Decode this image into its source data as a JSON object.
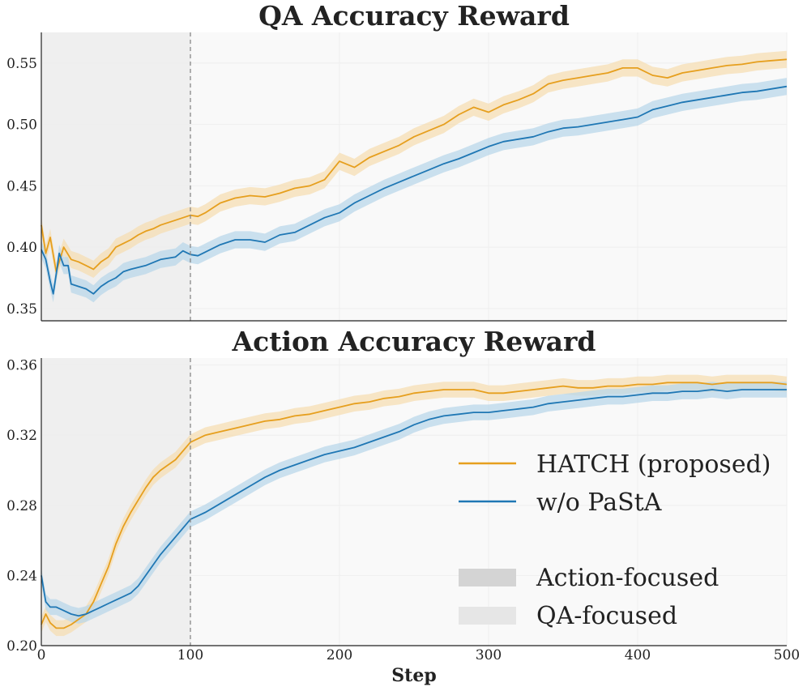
{
  "chart_data": [
    {
      "type": "line",
      "title": "QA Accuracy Reward",
      "xlabel": "",
      "ylabel": "",
      "xlim": [
        0,
        500
      ],
      "ylim": [
        0.34,
        0.575
      ],
      "yticks": [
        "0.35",
        "0.40",
        "0.45",
        "0.50",
        "0.55"
      ],
      "ytick_values": [
        0.35,
        0.4,
        0.45,
        0.5,
        0.55
      ],
      "phase_boundary_step": 100,
      "band_halfwidth": 0.007,
      "series": [
        {
          "name": "HATCH (proposed)",
          "color": "#e69f1e",
          "band_color": "#f5deb3",
          "x": [
            0,
            3,
            6,
            10,
            15,
            20,
            25,
            30,
            35,
            40,
            45,
            50,
            55,
            60,
            65,
            70,
            75,
            80,
            90,
            100,
            105,
            110,
            120,
            130,
            140,
            150,
            160,
            170,
            180,
            190,
            200,
            210,
            220,
            230,
            240,
            250,
            260,
            270,
            280,
            290,
            300,
            310,
            320,
            330,
            340,
            350,
            360,
            370,
            380,
            390,
            400,
            410,
            420,
            430,
            440,
            450,
            460,
            470,
            480,
            490,
            500
          ],
          "values": [
            0.418,
            0.395,
            0.408,
            0.38,
            0.4,
            0.39,
            0.388,
            0.385,
            0.382,
            0.388,
            0.392,
            0.4,
            0.403,
            0.406,
            0.41,
            0.413,
            0.415,
            0.418,
            0.422,
            0.426,
            0.425,
            0.428,
            0.436,
            0.44,
            0.442,
            0.441,
            0.444,
            0.448,
            0.45,
            0.455,
            0.47,
            0.465,
            0.473,
            0.478,
            0.483,
            0.49,
            0.495,
            0.5,
            0.508,
            0.514,
            0.51,
            0.516,
            0.52,
            0.525,
            0.533,
            0.536,
            0.538,
            0.54,
            0.542,
            0.546,
            0.546,
            0.54,
            0.538,
            0.542,
            0.544,
            0.546,
            0.548,
            0.549,
            0.551,
            0.552,
            0.553
          ]
        },
        {
          "name": "w/o PaStA",
          "color": "#1f77b4",
          "band_color": "#b9d7ea",
          "x": [
            0,
            3,
            6,
            8,
            10,
            12,
            15,
            18,
            20,
            25,
            30,
            35,
            40,
            45,
            50,
            55,
            60,
            70,
            80,
            90,
            95,
            100,
            105,
            110,
            120,
            130,
            140,
            150,
            160,
            170,
            180,
            190,
            200,
            210,
            220,
            230,
            240,
            250,
            260,
            270,
            280,
            290,
            300,
            310,
            320,
            330,
            340,
            350,
            360,
            370,
            380,
            390,
            400,
            410,
            420,
            430,
            440,
            450,
            460,
            470,
            480,
            490,
            500
          ],
          "values": [
            0.398,
            0.39,
            0.372,
            0.362,
            0.378,
            0.395,
            0.385,
            0.385,
            0.37,
            0.368,
            0.366,
            0.362,
            0.368,
            0.372,
            0.375,
            0.38,
            0.382,
            0.385,
            0.39,
            0.392,
            0.397,
            0.394,
            0.393,
            0.396,
            0.402,
            0.406,
            0.406,
            0.404,
            0.41,
            0.412,
            0.418,
            0.424,
            0.428,
            0.436,
            0.442,
            0.448,
            0.453,
            0.458,
            0.463,
            0.468,
            0.472,
            0.477,
            0.482,
            0.486,
            0.488,
            0.49,
            0.494,
            0.497,
            0.498,
            0.5,
            0.502,
            0.504,
            0.506,
            0.512,
            0.515,
            0.518,
            0.52,
            0.522,
            0.524,
            0.526,
            0.527,
            0.529,
            0.531
          ]
        }
      ]
    },
    {
      "type": "line",
      "title": "Action Accuracy Reward",
      "xlabel": "Step",
      "ylabel": "",
      "xlim": [
        0,
        500
      ],
      "ylim": [
        0.2,
        0.364
      ],
      "yticks": [
        "0.20",
        "0.24",
        "0.28",
        "0.32",
        "0.36"
      ],
      "ytick_values": [
        0.2,
        0.24,
        0.28,
        0.32,
        0.36
      ],
      "xticks": [
        "0",
        "100",
        "200",
        "300",
        "400",
        "500"
      ],
      "xtick_values": [
        0,
        100,
        200,
        300,
        400,
        500
      ],
      "phase_boundary_step": 100,
      "band_halfwidth": 0.0045,
      "series": [
        {
          "name": "HATCH (proposed)",
          "color": "#e69f1e",
          "band_color": "#f5deb3",
          "x": [
            0,
            3,
            6,
            10,
            15,
            20,
            25,
            30,
            35,
            40,
            45,
            50,
            55,
            60,
            65,
            70,
            75,
            80,
            90,
            100,
            110,
            120,
            130,
            140,
            150,
            160,
            170,
            180,
            190,
            200,
            210,
            220,
            230,
            240,
            250,
            260,
            270,
            280,
            290,
            300,
            310,
            320,
            330,
            340,
            350,
            360,
            370,
            380,
            390,
            400,
            410,
            420,
            430,
            440,
            450,
            460,
            470,
            480,
            490,
            500
          ],
          "values": [
            0.212,
            0.218,
            0.213,
            0.21,
            0.21,
            0.212,
            0.215,
            0.218,
            0.225,
            0.235,
            0.245,
            0.258,
            0.268,
            0.276,
            0.283,
            0.29,
            0.296,
            0.3,
            0.306,
            0.316,
            0.32,
            0.322,
            0.324,
            0.326,
            0.328,
            0.329,
            0.331,
            0.332,
            0.334,
            0.336,
            0.338,
            0.339,
            0.341,
            0.342,
            0.344,
            0.345,
            0.346,
            0.346,
            0.346,
            0.344,
            0.344,
            0.345,
            0.346,
            0.347,
            0.348,
            0.347,
            0.347,
            0.348,
            0.348,
            0.349,
            0.349,
            0.35,
            0.35,
            0.35,
            0.349,
            0.35,
            0.35,
            0.35,
            0.35,
            0.349
          ]
        },
        {
          "name": "w/o PaStA",
          "color": "#1f77b4",
          "band_color": "#b9d7ea",
          "x": [
            0,
            3,
            6,
            10,
            15,
            20,
            25,
            30,
            35,
            40,
            45,
            50,
            55,
            60,
            65,
            70,
            75,
            80,
            90,
            100,
            110,
            120,
            130,
            140,
            150,
            160,
            170,
            180,
            190,
            200,
            210,
            220,
            230,
            240,
            250,
            260,
            270,
            280,
            290,
            300,
            310,
            320,
            330,
            340,
            350,
            360,
            370,
            380,
            390,
            400,
            410,
            420,
            430,
            440,
            450,
            460,
            470,
            480,
            490,
            500
          ],
          "values": [
            0.24,
            0.225,
            0.222,
            0.222,
            0.22,
            0.218,
            0.217,
            0.218,
            0.22,
            0.222,
            0.224,
            0.226,
            0.228,
            0.23,
            0.234,
            0.24,
            0.246,
            0.252,
            0.262,
            0.272,
            0.276,
            0.281,
            0.286,
            0.291,
            0.296,
            0.3,
            0.303,
            0.306,
            0.309,
            0.311,
            0.313,
            0.316,
            0.319,
            0.322,
            0.326,
            0.329,
            0.331,
            0.332,
            0.333,
            0.333,
            0.334,
            0.335,
            0.336,
            0.338,
            0.339,
            0.34,
            0.341,
            0.342,
            0.342,
            0.343,
            0.344,
            0.344,
            0.345,
            0.345,
            0.346,
            0.345,
            0.346,
            0.346,
            0.346,
            0.346
          ]
        }
      ]
    }
  ],
  "legend": {
    "placement": "lower-right of bottom panel",
    "entries": [
      {
        "label": "HATCH (proposed)",
        "kind": "line",
        "color": "#e69f1e"
      },
      {
        "label": "w/o PaStA",
        "kind": "line",
        "color": "#1f77b4"
      },
      {
        "label": "Action-focused",
        "kind": "patch",
        "color": "#d4d4d4"
      },
      {
        "label": "QA-focused",
        "kind": "patch",
        "color": "#e6e6e6"
      }
    ]
  },
  "colors": {
    "axes_bg": "#f9f9f9",
    "phase_shade": "#efefef",
    "grid": "#eeeeee",
    "boundary_line": "#888888"
  }
}
